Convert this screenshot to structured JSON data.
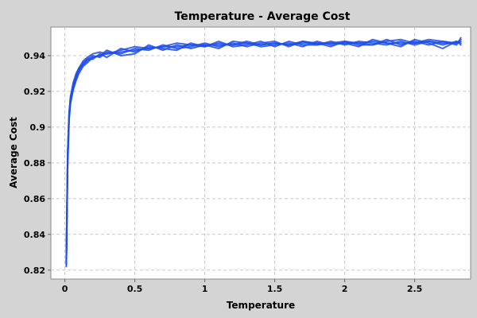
{
  "chart_data": {
    "type": "line",
    "title": "Temperature - Average Cost",
    "xlabel": "Temperature",
    "ylabel": "Average Cost",
    "xlim": [
      -0.1,
      2.9
    ],
    "ylim": [
      0.815,
      0.956
    ],
    "xticks": [
      0,
      0.5,
      1,
      1.5,
      2,
      2.5
    ],
    "xtick_labels": [
      "0",
      "0.5",
      "1",
      "1.5",
      "2",
      "2.5"
    ],
    "yticks": [
      0.82,
      0.84,
      0.86,
      0.88,
      0.9,
      0.92,
      0.94
    ],
    "ytick_labels": [
      "0.82",
      "0.84",
      "0.86",
      "0.88",
      "0.9",
      "0.92",
      "0.94"
    ],
    "grid": true,
    "legend": "none",
    "colors": {
      "series": "#1f4ee8",
      "plot_background": "#ffffff",
      "page_background": "#d4d4d4",
      "grid": "#c8c8c8"
    },
    "series": [
      {
        "x": [
          0.01,
          0.02,
          0.03,
          0.04,
          0.06,
          0.08,
          0.1,
          0.13,
          0.16,
          0.2,
          0.25,
          0.3,
          0.4,
          0.5,
          0.6,
          0.7,
          0.8,
          0.9,
          1.0,
          1.1,
          1.2,
          1.3,
          1.4,
          1.5,
          1.6,
          1.7,
          1.8,
          1.9,
          2.0,
          2.1,
          2.2,
          2.3,
          2.4,
          2.5,
          2.6,
          2.7,
          2.8,
          2.83
        ],
        "values": [
          0.822,
          0.88,
          0.905,
          0.914,
          0.922,
          0.927,
          0.931,
          0.935,
          0.937,
          0.939,
          0.94,
          0.941,
          0.942,
          0.943,
          0.944,
          0.945,
          0.945,
          0.946,
          0.946,
          0.946,
          0.946,
          0.947,
          0.946,
          0.947,
          0.946,
          0.947,
          0.947,
          0.947,
          0.947,
          0.947,
          0.948,
          0.947,
          0.947,
          0.947,
          0.948,
          0.947,
          0.947,
          0.949
        ]
      },
      {
        "x": [
          0.01,
          0.02,
          0.03,
          0.04,
          0.06,
          0.08,
          0.1,
          0.13,
          0.16,
          0.2,
          0.25,
          0.3,
          0.4,
          0.5,
          0.6,
          0.7,
          0.8,
          0.9,
          1.0,
          1.1,
          1.2,
          1.3,
          1.4,
          1.5,
          1.6,
          1.7,
          1.8,
          1.9,
          2.0,
          2.1,
          2.2,
          2.3,
          2.4,
          2.5,
          2.6,
          2.7,
          2.8,
          2.83
        ],
        "values": [
          0.824,
          0.882,
          0.906,
          0.915,
          0.923,
          0.928,
          0.932,
          0.936,
          0.938,
          0.938,
          0.941,
          0.939,
          0.944,
          0.942,
          0.945,
          0.944,
          0.943,
          0.947,
          0.945,
          0.948,
          0.945,
          0.946,
          0.948,
          0.945,
          0.948,
          0.946,
          0.946,
          0.948,
          0.946,
          0.948,
          0.947,
          0.946,
          0.948,
          0.946,
          0.948,
          0.946,
          0.948,
          0.946
        ]
      },
      {
        "x": [
          0.01,
          0.02,
          0.03,
          0.04,
          0.06,
          0.08,
          0.1,
          0.13,
          0.16,
          0.2,
          0.25,
          0.3,
          0.4,
          0.5,
          0.6,
          0.7,
          0.8,
          0.9,
          1.0,
          1.1,
          1.2,
          1.3,
          1.4,
          1.5,
          1.6,
          1.7,
          1.8,
          1.9,
          2.0,
          2.1,
          2.2,
          2.3,
          2.4,
          2.5,
          2.6,
          2.7,
          2.8,
          2.83
        ],
        "values": [
          0.825,
          0.885,
          0.907,
          0.916,
          0.924,
          0.929,
          0.933,
          0.935,
          0.938,
          0.94,
          0.939,
          0.942,
          0.941,
          0.944,
          0.943,
          0.946,
          0.944,
          0.945,
          0.947,
          0.945,
          0.947,
          0.945,
          0.947,
          0.948,
          0.945,
          0.948,
          0.947,
          0.945,
          0.948,
          0.946,
          0.946,
          0.949,
          0.946,
          0.948,
          0.946,
          0.948,
          0.947,
          0.948
        ]
      },
      {
        "x": [
          0.01,
          0.02,
          0.03,
          0.04,
          0.06,
          0.08,
          0.1,
          0.13,
          0.16,
          0.2,
          0.25,
          0.3,
          0.4,
          0.5,
          0.6,
          0.7,
          0.8,
          0.9,
          1.0,
          1.1,
          1.2,
          1.3,
          1.4,
          1.5,
          1.6,
          1.7,
          1.8,
          1.9,
          2.0,
          2.1,
          2.2,
          2.3,
          2.4,
          2.5,
          2.6,
          2.7,
          2.8,
          2.83
        ],
        "values": [
          0.823,
          0.878,
          0.904,
          0.913,
          0.921,
          0.926,
          0.93,
          0.934,
          0.936,
          0.939,
          0.94,
          0.943,
          0.94,
          0.941,
          0.946,
          0.943,
          0.946,
          0.944,
          0.946,
          0.944,
          0.948,
          0.947,
          0.945,
          0.946,
          0.947,
          0.945,
          0.948,
          0.946,
          0.947,
          0.945,
          0.949,
          0.947,
          0.945,
          0.949,
          0.947,
          0.944,
          0.948,
          0.947
        ]
      },
      {
        "x": [
          0.01,
          0.02,
          0.03,
          0.04,
          0.06,
          0.08,
          0.1,
          0.13,
          0.16,
          0.2,
          0.25,
          0.3,
          0.4,
          0.5,
          0.6,
          0.7,
          0.8,
          0.9,
          1.0,
          1.1,
          1.2,
          1.3,
          1.4,
          1.5,
          1.6,
          1.7,
          1.8,
          1.9,
          2.0,
          2.1,
          2.2,
          2.3,
          2.4,
          2.5,
          2.6,
          2.7,
          2.8,
          2.83
        ],
        "values": [
          0.826,
          0.886,
          0.908,
          0.917,
          0.925,
          0.93,
          0.933,
          0.937,
          0.939,
          0.941,
          0.942,
          0.941,
          0.943,
          0.945,
          0.944,
          0.945,
          0.947,
          0.946,
          0.945,
          0.947,
          0.946,
          0.948,
          0.946,
          0.947,
          0.946,
          0.948,
          0.946,
          0.947,
          0.948,
          0.947,
          0.946,
          0.948,
          0.949,
          0.947,
          0.949,
          0.948,
          0.946,
          0.95
        ]
      }
    ]
  }
}
